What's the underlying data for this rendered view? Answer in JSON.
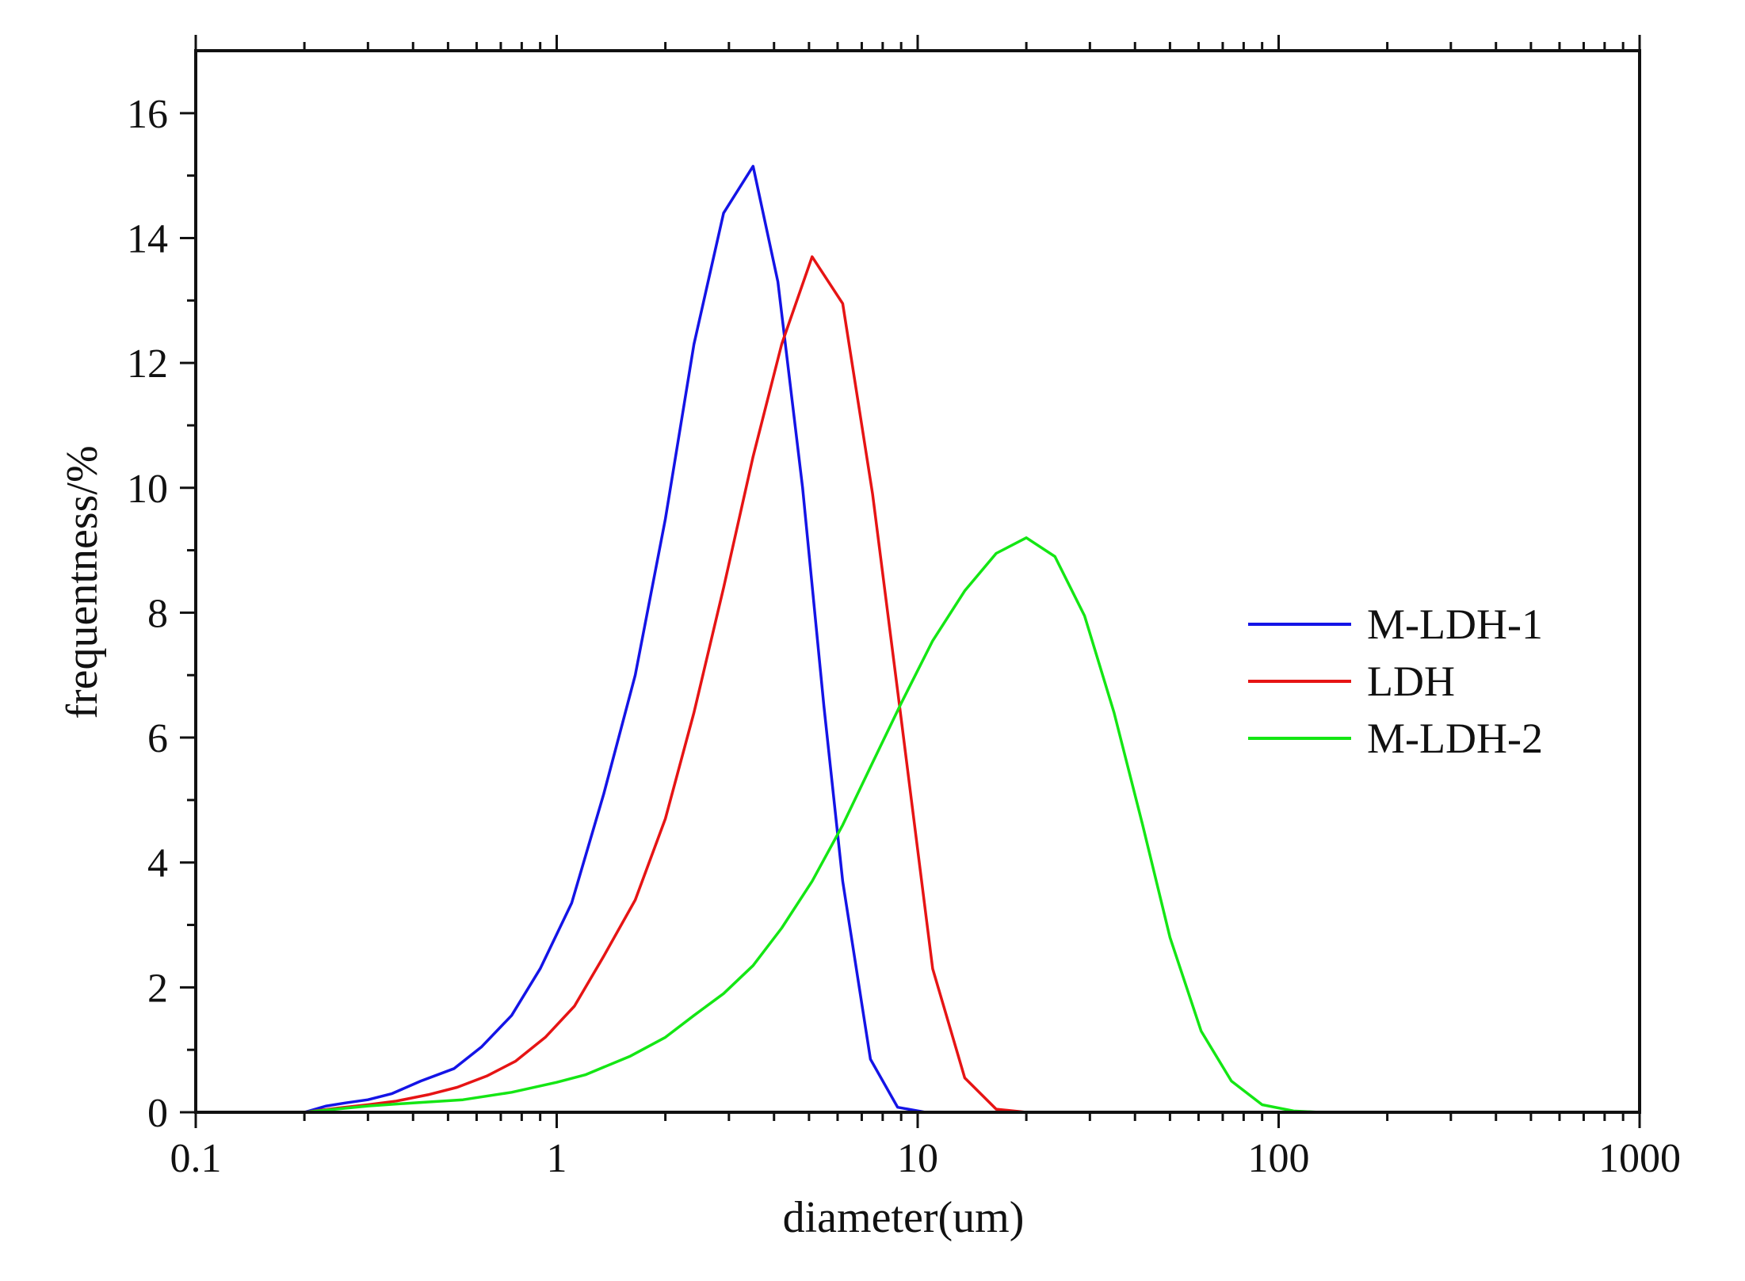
{
  "chart_data": {
    "type": "line",
    "title": "",
    "xlabel": "diameter(um)",
    "ylabel": "frequentness/%",
    "xscale": "log",
    "xlim": [
      0.1,
      1000
    ],
    "ylim": [
      0,
      17
    ],
    "xticks": [
      0.1,
      1,
      10,
      100,
      1000
    ],
    "xtick_labels": [
      "0.1",
      "1",
      "10",
      "100",
      "1000"
    ],
    "yticks": [
      0,
      2,
      4,
      6,
      8,
      10,
      12,
      14,
      16
    ],
    "ytick_labels": [
      "0",
      "2",
      "4",
      "6",
      "8",
      "10",
      "12",
      "14",
      "16"
    ],
    "grid": false,
    "legend_position": "right-middle",
    "series": [
      {
        "name": "M-LDH-1",
        "color": "#1414e6",
        "points": [
          [
            0.1,
            0
          ],
          [
            0.2,
            0
          ],
          [
            0.23,
            0.1
          ],
          [
            0.26,
            0.15
          ],
          [
            0.3,
            0.2
          ],
          [
            0.35,
            0.3
          ],
          [
            0.42,
            0.5
          ],
          [
            0.52,
            0.7
          ],
          [
            0.62,
            1.05
          ],
          [
            0.75,
            1.55
          ],
          [
            0.9,
            2.3
          ],
          [
            1.1,
            3.35
          ],
          [
            1.35,
            5.1
          ],
          [
            1.65,
            7.0
          ],
          [
            2.0,
            9.5
          ],
          [
            2.4,
            12.3
          ],
          [
            2.9,
            14.4
          ],
          [
            3.5,
            15.15
          ],
          [
            4.1,
            13.3
          ],
          [
            4.8,
            10.0
          ],
          [
            5.5,
            6.5
          ],
          [
            6.2,
            3.7
          ],
          [
            7.4,
            0.85
          ],
          [
            8.8,
            0.08
          ],
          [
            10.5,
            0
          ],
          [
            1000,
            0
          ]
        ]
      },
      {
        "name": "LDH",
        "color": "#e61414",
        "points": [
          [
            0.1,
            0
          ],
          [
            0.2,
            0
          ],
          [
            0.25,
            0.07
          ],
          [
            0.3,
            0.12
          ],
          [
            0.36,
            0.18
          ],
          [
            0.44,
            0.28
          ],
          [
            0.53,
            0.4
          ],
          [
            0.64,
            0.58
          ],
          [
            0.77,
            0.82
          ],
          [
            0.93,
            1.2
          ],
          [
            1.12,
            1.7
          ],
          [
            1.35,
            2.5
          ],
          [
            1.65,
            3.4
          ],
          [
            2.0,
            4.7
          ],
          [
            2.4,
            6.4
          ],
          [
            2.9,
            8.4
          ],
          [
            3.5,
            10.5
          ],
          [
            4.2,
            12.3
          ],
          [
            5.1,
            13.7
          ],
          [
            6.2,
            12.95
          ],
          [
            7.5,
            9.9
          ],
          [
            9.0,
            6.3
          ],
          [
            11.0,
            2.3
          ],
          [
            13.5,
            0.55
          ],
          [
            16.5,
            0.05
          ],
          [
            20,
            0
          ],
          [
            1000,
            0
          ]
        ]
      },
      {
        "name": "M-LDH-2",
        "color": "#14e614",
        "points": [
          [
            0.1,
            0
          ],
          [
            0.2,
            0
          ],
          [
            0.3,
            0.1
          ],
          [
            0.4,
            0.15
          ],
          [
            0.55,
            0.2
          ],
          [
            0.75,
            0.32
          ],
          [
            1.0,
            0.48
          ],
          [
            1.2,
            0.6
          ],
          [
            1.6,
            0.9
          ],
          [
            2.0,
            1.2
          ],
          [
            2.4,
            1.55
          ],
          [
            2.9,
            1.9
          ],
          [
            3.5,
            2.35
          ],
          [
            4.2,
            2.95
          ],
          [
            5.1,
            3.7
          ],
          [
            6.2,
            4.6
          ],
          [
            7.5,
            5.6
          ],
          [
            9.0,
            6.55
          ],
          [
            11,
            7.55
          ],
          [
            13.5,
            8.35
          ],
          [
            16.5,
            8.95
          ],
          [
            20,
            9.2
          ],
          [
            24,
            8.9
          ],
          [
            29,
            7.95
          ],
          [
            35,
            6.4
          ],
          [
            42,
            4.6
          ],
          [
            50,
            2.8
          ],
          [
            61,
            1.3
          ],
          [
            74,
            0.5
          ],
          [
            90,
            0.12
          ],
          [
            110,
            0.02
          ],
          [
            130,
            0
          ],
          [
            1000,
            0
          ]
        ]
      }
    ]
  }
}
